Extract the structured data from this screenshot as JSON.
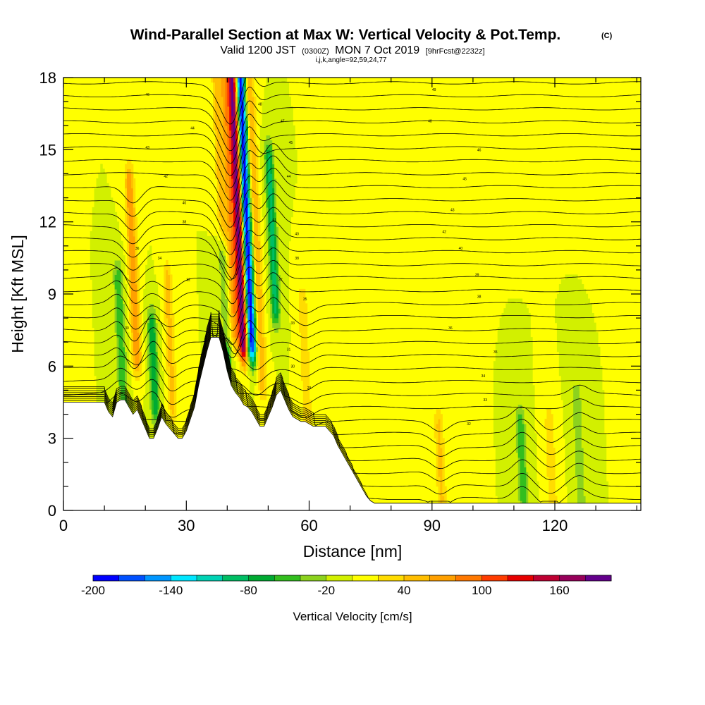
{
  "chart_data": {
    "type": "heatmap",
    "title": "Wind-Parallel Section at Max W: Vertical Velocity & Pot.Temp.",
    "title_mark": "(C)",
    "subtitle_parts": [
      "Valid 1200 JST",
      "(0300Z)",
      "MON 7 Oct 2019",
      "[9hrFcst@2232z]"
    ],
    "subsubtitle": "i,j,k,angle=92,59,24,77",
    "xlabel": "Distance [nm]",
    "ylabel": "Height [Kft MSL]",
    "xlim": [
      0,
      141
    ],
    "ylim": [
      0,
      18
    ],
    "x_ticks": [
      "0",
      "30",
      "60",
      "90",
      "120"
    ],
    "x_tick_values": [
      0,
      30,
      60,
      90,
      120
    ],
    "y_ticks": [
      "0",
      "3",
      "6",
      "9",
      "12",
      "15",
      "18"
    ],
    "y_tick_values": [
      0,
      3,
      6,
      9,
      12,
      15,
      18
    ],
    "colorbar": {
      "title": "Vertical Velocity [cm/s]",
      "tick_labels": [
        "-200",
        "-140",
        "-80",
        "-20",
        "40",
        "100",
        "160"
      ],
      "tick_values": [
        -200,
        -140,
        -80,
        -20,
        40,
        100,
        160
      ],
      "range": [
        -200,
        200
      ],
      "colors": [
        "#0000ff",
        "#0050ff",
        "#0096ff",
        "#00e6ff",
        "#00d2b4",
        "#00be64",
        "#00aa32",
        "#32be1e",
        "#8cd21e",
        "#d2f000",
        "#ffff00",
        "#ffdc00",
        "#ffbe00",
        "#ffa000",
        "#ff7800",
        "#ff3c00",
        "#e60000",
        "#be0032",
        "#96005a",
        "#64008c"
      ]
    },
    "background_w": 0,
    "updrafts": [
      {
        "x": 42.5,
        "w": 190,
        "z0": 7.5,
        "z1": 18
      },
      {
        "x": 40.5,
        "w": 70,
        "z0": 8,
        "z1": 18
      },
      {
        "x": 38.5,
        "w": 50,
        "z0": 8,
        "z1": 18
      },
      {
        "x": 47,
        "w": 60,
        "z0": 6,
        "z1": 17
      },
      {
        "x": 17,
        "w": 80,
        "z0": 7,
        "z1": 13
      },
      {
        "x": 26,
        "w": 50,
        "z0": 5,
        "z1": 9
      },
      {
        "x": 59,
        "w": 40,
        "z0": 4,
        "z1": 8
      },
      {
        "x": 92,
        "w": 45,
        "z0": 1,
        "z1": 3
      },
      {
        "x": 119,
        "w": 40,
        "z0": 1,
        "z1": 3
      }
    ],
    "downdrafts": [
      {
        "x": 44.5,
        "w": -200,
        "z0": 7.5,
        "z1": 18
      },
      {
        "x": 51,
        "w": -90,
        "z0": 9,
        "z1": 14
      },
      {
        "x": 39.5,
        "w": -80,
        "z0": 7,
        "z1": 10
      },
      {
        "x": 22,
        "w": -80,
        "z0": 5,
        "z1": 7
      },
      {
        "x": 14,
        "w": -60,
        "z0": 5,
        "z1": 9
      },
      {
        "x": 112,
        "w": -60,
        "z0": 1,
        "z1": 3
      },
      {
        "x": 126,
        "w": -40,
        "z0": 0,
        "z1": 4
      }
    ],
    "terrain_x": [
      0,
      1,
      3,
      7,
      10,
      11,
      12,
      13,
      14,
      15,
      16,
      17,
      18,
      19,
      20,
      21,
      22,
      23,
      24,
      25,
      26,
      27,
      28,
      29,
      30,
      31,
      32,
      33,
      34,
      35,
      36,
      37,
      38,
      39,
      40,
      41,
      42,
      43,
      44,
      45,
      46,
      47,
      48,
      49,
      50,
      51,
      52,
      53,
      54,
      55,
      56,
      57,
      58,
      59,
      60,
      61,
      62,
      63,
      64,
      65,
      66,
      67,
      68,
      69,
      70,
      71,
      72,
      73,
      74,
      75,
      76,
      77,
      78,
      79,
      80,
      141
    ],
    "terrain_z": [
      4.5,
      4.5,
      4.5,
      4.5,
      4.5,
      4.1,
      3.9,
      4.5,
      4.6,
      4.6,
      4.3,
      4.0,
      4.2,
      3.8,
      3.4,
      3.0,
      3.0,
      3.4,
      3.9,
      3.6,
      3.4,
      3.2,
      3.0,
      3.0,
      3.3,
      3.8,
      4.3,
      5.2,
      5.9,
      6.6,
      7.2,
      7.2,
      7.2,
      6.6,
      5.8,
      5.2,
      4.9,
      4.7,
      4.4,
      4.3,
      4.1,
      3.8,
      3.5,
      3.5,
      3.9,
      4.3,
      4.8,
      5.0,
      4.6,
      4.2,
      3.9,
      3.8,
      3.7,
      3.7,
      3.6,
      3.5,
      3.5,
      3.5,
      3.5,
      3.3,
      3.1,
      2.7,
      2.4,
      2.1,
      1.8,
      1.5,
      1.2,
      0.9,
      0.6,
      0.4,
      0.3,
      0.3,
      0.3,
      0.3,
      0.3,
      0.3
    ],
    "theta_contour_count": 33,
    "theta_contour_labels": [
      {
        "x": 20.5,
        "z": 17.3,
        "label": "46"
      },
      {
        "x": 31.5,
        "z": 15.9,
        "label": "44"
      },
      {
        "x": 20.5,
        "z": 15.1,
        "label": "43"
      },
      {
        "x": 25.0,
        "z": 13.9,
        "label": "42"
      },
      {
        "x": 29.5,
        "z": 12.8,
        "label": "40"
      },
      {
        "x": 29.5,
        "z": 12.0,
        "label": "38"
      },
      {
        "x": 18.0,
        "z": 10.9,
        "label": "36"
      },
      {
        "x": 23.5,
        "z": 10.5,
        "label": "34"
      },
      {
        "x": 30.5,
        "z": 9.6,
        "label": "32"
      },
      {
        "x": 15.5,
        "z": 7.6,
        "label": "30"
      },
      {
        "x": 48.0,
        "z": 16.9,
        "label": "48"
      },
      {
        "x": 53.5,
        "z": 16.2,
        "label": "47"
      },
      {
        "x": 55.5,
        "z": 15.3,
        "label": "45"
      },
      {
        "x": 55.0,
        "z": 13.9,
        "label": "44"
      },
      {
        "x": 51.5,
        "z": 12.1,
        "label": "41"
      },
      {
        "x": 57.0,
        "z": 11.5,
        "label": "40"
      },
      {
        "x": 57.0,
        "z": 10.5,
        "label": "38"
      },
      {
        "x": 53.0,
        "z": 9.6,
        "label": "37"
      },
      {
        "x": 59.0,
        "z": 8.8,
        "label": "35"
      },
      {
        "x": 56.0,
        "z": 7.8,
        "label": "33"
      },
      {
        "x": 55.0,
        "z": 6.7,
        "label": "31"
      },
      {
        "x": 56.0,
        "z": 6.0,
        "label": "30"
      },
      {
        "x": 60.0,
        "z": 5.1,
        "label": "29"
      },
      {
        "x": 90.5,
        "z": 17.5,
        "label": "49"
      },
      {
        "x": 89.5,
        "z": 16.2,
        "label": "48"
      },
      {
        "x": 101.5,
        "z": 15.0,
        "label": "46"
      },
      {
        "x": 98.0,
        "z": 13.8,
        "label": "45"
      },
      {
        "x": 95.0,
        "z": 12.5,
        "label": "43"
      },
      {
        "x": 93.0,
        "z": 11.6,
        "label": "42"
      },
      {
        "x": 97.0,
        "z": 10.9,
        "label": "40"
      },
      {
        "x": 101.0,
        "z": 9.8,
        "label": "39"
      },
      {
        "x": 101.5,
        "z": 8.9,
        "label": "38"
      },
      {
        "x": 94.5,
        "z": 7.6,
        "label": "36"
      },
      {
        "x": 105.5,
        "z": 6.6,
        "label": "35"
      },
      {
        "x": 102.5,
        "z": 5.6,
        "label": "34"
      },
      {
        "x": 103.0,
        "z": 4.6,
        "label": "33"
      },
      {
        "x": 99.0,
        "z": 3.6,
        "label": "32"
      }
    ]
  }
}
